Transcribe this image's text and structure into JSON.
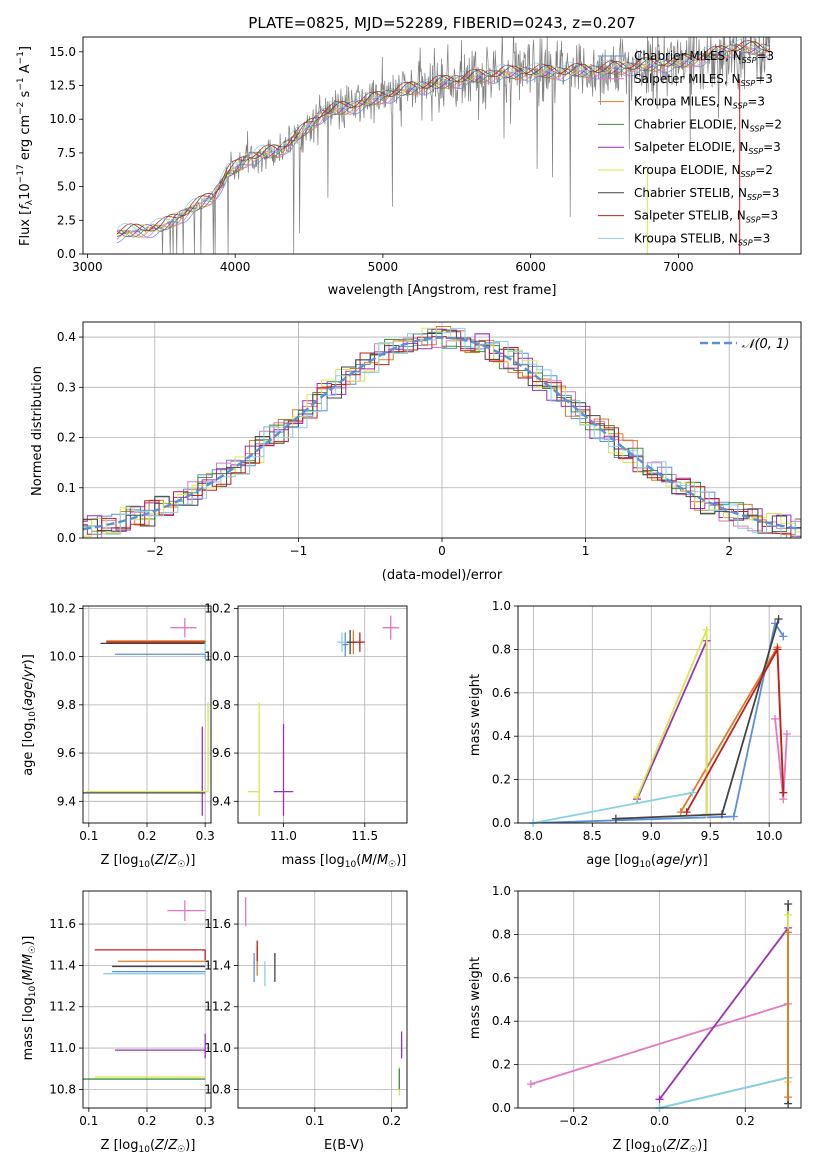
{
  "colors": {
    "Chabrier MILES": "#5b8fd9",
    "Salpeter MILES": "#e377c2",
    "Kroupa MILES": "#e07b20",
    "Chabrier ELODIE": "#3e8f3e",
    "Salpeter ELODIE": "#9b2fbf",
    "Kroupa ELODIE": "#d9e84a",
    "Chabrier STELIB": "#444444",
    "Salpeter STELIB": "#c0201f",
    "Kroupa STELIB": "#86d1e8",
    "data": "#7f7f7f",
    "gaussian": "#5b8fd9",
    "grid": "#b0b0b0"
  },
  "chart_data": [
    {
      "id": "spectrum",
      "type": "line",
      "title": "PLATE=0825, MJD=52289, FIBERID=0243, z=0.207",
      "xlabel": "wavelength [Angstrom, rest frame]",
      "ylabel": "Flux [f_λ 10^-17 erg cm^-2 s^-1 A^-1]",
      "xlim": [
        2970,
        7830
      ],
      "ylim": [
        0,
        16.1
      ],
      "xticks": [
        "3000",
        "4000",
        "5000",
        "6000",
        "7000"
      ],
      "yticks": [
        "0.0",
        "2.5",
        "5.0",
        "7.5",
        "10.0",
        "12.5",
        "15.0"
      ],
      "grid": false,
      "legend_position": "upper right",
      "legend": [
        {
          "name": "Chabrier MILES",
          "nssp": "3"
        },
        {
          "name": "Salpeter MILES",
          "nssp": "3"
        },
        {
          "name": "Kroupa MILES",
          "nssp": "3"
        },
        {
          "name": "Chabrier ELODIE",
          "nssp": "2"
        },
        {
          "name": "Salpeter ELODIE",
          "nssp": "3"
        },
        {
          "name": "Kroupa ELODIE",
          "nssp": "2"
        },
        {
          "name": "Chabrier STELIB",
          "nssp": "3"
        },
        {
          "name": "Salpeter STELIB",
          "nssp": "3"
        },
        {
          "name": "Kroupa STELIB",
          "nssp": "3"
        }
      ],
      "continuum_points": [
        [
          3200,
          1.5
        ],
        [
          3500,
          2.0
        ],
        [
          3700,
          3.3
        ],
        [
          3850,
          4.3
        ],
        [
          3950,
          6.0
        ],
        [
          4100,
          7.2
        ],
        [
          4300,
          7.7
        ],
        [
          4450,
          9.0
        ],
        [
          4600,
          10.5
        ],
        [
          4800,
          11.0
        ],
        [
          5000,
          11.7
        ],
        [
          5200,
          12.3
        ],
        [
          5400,
          12.7
        ],
        [
          5600,
          13.1
        ],
        [
          5800,
          13.4
        ],
        [
          6000,
          13.5
        ],
        [
          6200,
          13.5
        ],
        [
          6400,
          13.6
        ],
        [
          6600,
          13.8
        ],
        [
          6800,
          14.0
        ],
        [
          7000,
          14.2
        ],
        [
          7200,
          14.7
        ],
        [
          7400,
          15.3
        ],
        [
          7600,
          15.2
        ]
      ]
    },
    {
      "id": "residuals",
      "type": "histogram",
      "xlabel": "(data-model)/error",
      "ylabel": "Normed distribution",
      "xlim": [
        -2.5,
        2.5
      ],
      "ylim": [
        0,
        0.43
      ],
      "xticks": [
        "−2",
        "−1",
        "0",
        "1",
        "2"
      ],
      "yticks": [
        "0.0",
        "0.1",
        "0.2",
        "0.3",
        "0.4"
      ],
      "grid": true,
      "legend_position": "upper right",
      "legend_label": "𝒩(0, 1)",
      "bin_width": 0.1
    },
    {
      "id": "age-vs-Z",
      "type": "scatter",
      "xlabel": "Z [log10(Z/Z☉)]",
      "ylabel": "age [log10(age/yr)]",
      "xlim": [
        0.09,
        0.31
      ],
      "ylim": [
        9.31,
        10.21
      ],
      "xticks": [
        "0.1",
        "0.2",
        "0.3"
      ],
      "yticks": [
        "9.4",
        "9.6",
        "9.8",
        "10.0",
        "10.2"
      ],
      "grid": true,
      "points": [
        {
          "series": "Chabrier MILES",
          "x": 0.3,
          "y": 10.01,
          "x_err": [
            0.155,
            0.0
          ],
          "y_err": [
            0.02,
            0.0
          ]
        },
        {
          "series": "Salpeter MILES",
          "x": 0.265,
          "y": 10.12,
          "x_err": [
            0.025,
            0.02
          ],
          "y_err": [
            0.04,
            0.04
          ]
        },
        {
          "series": "Kroupa MILES",
          "x": 0.3,
          "y": 10.065,
          "x_err": [
            0.17,
            0.0
          ],
          "y_err": [
            0.01,
            0.0
          ]
        },
        {
          "series": "Salpeter ELODIE",
          "x": 0.295,
          "y": 9.44,
          "x_err": [
            0.0,
            0.0
          ],
          "y_err": [
            0.1,
            0.27
          ]
        },
        {
          "series": "Kroupa ELODIE",
          "x": 0.305,
          "y": 9.44,
          "x_err": [
            0.21,
            0.0
          ],
          "y_err": [
            0.0,
            0.37
          ]
        },
        {
          "series": "Chabrier STELIB",
          "x": 0.3,
          "y": 10.055,
          "x_err": [
            0.18,
            0.0
          ],
          "y_err": [
            0.01,
            0.0
          ]
        },
        {
          "series": "Chabrier STELIB",
          "x": 0.3,
          "y": 9.435,
          "x_err": [
            0.21,
            0.0
          ],
          "y_err": [
            0.0,
            0.0
          ]
        },
        {
          "series": "Salpeter STELIB",
          "x": 0.3,
          "y": 10.06,
          "x_err": [
            0.17,
            0.0
          ],
          "y_err": [
            0.0,
            0.0
          ]
        },
        {
          "series": "Kroupa STELIB",
          "x": 0.3,
          "y": 10.06,
          "x_err": [
            0.0,
            0.0
          ],
          "y_err": [
            0.05,
            0.0
          ]
        }
      ]
    },
    {
      "id": "age-vs-mass",
      "type": "scatter",
      "xlabel": "mass [log10(M/M☉)]",
      "ylabel": "",
      "xlim": [
        10.72,
        11.76
      ],
      "ylim": [
        9.31,
        10.21
      ],
      "xticks": [
        "11.0",
        "11.5"
      ],
      "yticks": [
        "9.4",
        "9.6",
        "9.8",
        "10.0",
        "10.2"
      ],
      "grid": true,
      "points": [
        {
          "series": "Chabrier MILES",
          "x": 11.38,
          "y": 10.05,
          "x_err": [
            0.02,
            0.02
          ],
          "y_err": [
            0.05,
            0.05
          ]
        },
        {
          "series": "Salpeter MILES",
          "x": 11.66,
          "y": 10.12,
          "x_err": [
            0.05,
            0.05
          ],
          "y_err": [
            0.05,
            0.05
          ]
        },
        {
          "series": "Kroupa MILES",
          "x": 11.43,
          "y": 10.06,
          "x_err": [
            0.05,
            0.05
          ],
          "y_err": [
            0.05,
            0.05
          ]
        },
        {
          "series": "Chabrier ELODIE",
          "x": 10.86,
          "y": 9.44,
          "x_err": [
            0.0,
            0.0
          ],
          "y_err": [
            0.0,
            0.0
          ]
        },
        {
          "series": "Salpeter ELODIE",
          "x": 11.0,
          "y": 9.44,
          "x_err": [
            0.06,
            0.06
          ],
          "y_err": [
            0.1,
            0.28
          ]
        },
        {
          "series": "Kroupa ELODIE",
          "x": 10.85,
          "y": 9.44,
          "x_err": [
            0.07,
            0.0
          ],
          "y_err": [
            0.1,
            0.37
          ]
        },
        {
          "series": "Chabrier STELIB",
          "x": 11.41,
          "y": 10.06,
          "x_err": [
            0.03,
            0.03
          ],
          "y_err": [
            0.05,
            0.05
          ]
        },
        {
          "series": "Salpeter STELIB",
          "x": 11.47,
          "y": 10.06,
          "x_err": [
            0.05,
            0.03
          ],
          "y_err": [
            0.04,
            0.04
          ]
        },
        {
          "series": "Kroupa STELIB",
          "x": 11.36,
          "y": 10.06,
          "x_err": [
            0.03,
            0.03
          ],
          "y_err": [
            0.04,
            0.04
          ]
        }
      ]
    },
    {
      "id": "weight-vs-age",
      "type": "line",
      "xlabel": "age [log10(age/yr)]",
      "ylabel": "mass weight",
      "xlim": [
        7.87,
        10.27
      ],
      "ylim": [
        0,
        1.0
      ],
      "xticks": [
        "8.0",
        "8.5",
        "9.0",
        "9.5",
        "10.0"
      ],
      "yticks": [
        "0.0",
        "0.2",
        "0.4",
        "0.6",
        "0.8",
        "1.0"
      ],
      "grid": true,
      "series": [
        {
          "name": "Chabrier MILES",
          "points": [
            [
              8.0,
              0.0
            ],
            [
              9.7,
              0.03
            ],
            [
              10.05,
              0.92
            ],
            [
              10.12,
              0.86
            ]
          ]
        },
        {
          "name": "Salpeter MILES",
          "points": [
            [
              10.05,
              0.48
            ],
            [
              10.12,
              0.11
            ],
            [
              10.15,
              0.41
            ]
          ]
        },
        {
          "name": "Kroupa MILES",
          "points": [
            [
              9.25,
              0.05
            ],
            [
              10.07,
              0.81
            ],
            [
              10.12,
              0.14
            ]
          ]
        },
        {
          "name": "Salpeter ELODIE",
          "points": [
            [
              8.88,
              0.11
            ],
            [
              9.47,
              0.84
            ],
            [
              9.47,
              0.04
            ]
          ]
        },
        {
          "name": "Kroupa ELODIE",
          "points": [
            [
              8.88,
              0.12
            ],
            [
              9.47,
              0.89
            ],
            [
              9.47,
              0.04
            ]
          ]
        },
        {
          "name": "Chabrier STELIB",
          "points": [
            [
              8.7,
              0.02
            ],
            [
              9.6,
              0.04
            ],
            [
              10.08,
              0.94
            ]
          ]
        },
        {
          "name": "Salpeter STELIB",
          "points": [
            [
              9.3,
              0.05
            ],
            [
              10.07,
              0.8
            ],
            [
              10.12,
              0.14
            ]
          ]
        },
        {
          "name": "Kroupa STELIB",
          "points": [
            [
              8.0,
              0.0
            ],
            [
              9.35,
              0.14
            ]
          ]
        }
      ]
    },
    {
      "id": "mass-vs-Z",
      "type": "scatter",
      "xlabel": "Z [log10(Z/Z☉)]",
      "ylabel": "mass [log10(M/M☉)]",
      "xlim": [
        0.09,
        0.31
      ],
      "ylim": [
        10.71,
        11.76
      ],
      "xticks": [
        "0.1",
        "0.2",
        "0.3"
      ],
      "yticks": [
        "10.8",
        "11.0",
        "11.2",
        "11.4",
        "11.6"
      ],
      "grid": true,
      "points": [
        {
          "series": "Salpeter MILES",
          "x": 0.265,
          "y": 11.665,
          "x_err": [
            0.03,
            0.035
          ],
          "y_err": [
            0.05,
            0.05
          ]
        },
        {
          "series": "Kroupa MILES",
          "x": 0.3,
          "y": 11.42,
          "x_err": [
            0.15,
            0.0
          ],
          "y_err": [
            0.0,
            0.0
          ]
        },
        {
          "series": "Chabrier MILES",
          "x": 0.3,
          "y": 11.37,
          "x_err": [
            0.16,
            0.0
          ],
          "y_err": [
            0.0,
            0.0
          ]
        },
        {
          "series": "Kroupa STELIB",
          "x": 0.3,
          "y": 11.36,
          "x_err": [
            0.175,
            0.0
          ],
          "y_err": [
            0.0,
            0.0
          ]
        },
        {
          "series": "Chabrier STELIB",
          "x": 0.3,
          "y": 11.395,
          "x_err": [
            0.16,
            0.0
          ],
          "y_err": [
            0.0,
            0.0
          ]
        },
        {
          "series": "Salpeter STELIB",
          "x": 0.3,
          "y": 11.475,
          "x_err": [
            0.19,
            0.0
          ],
          "y_err": [
            0.05,
            0.0
          ]
        },
        {
          "series": "Salpeter ELODIE",
          "x": 0.3,
          "y": 10.99,
          "x_err": [
            0.155,
            0.0
          ],
          "y_err": [
            0.04,
            0.08
          ]
        },
        {
          "series": "Kroupa ELODIE",
          "x": 0.3,
          "y": 10.86,
          "x_err": [
            0.19,
            0.0
          ],
          "y_err": [
            0.0,
            0.0
          ]
        },
        {
          "series": "Chabrier ELODIE",
          "x": 0.3,
          "y": 10.85,
          "x_err": [
            0.21,
            0.0
          ],
          "y_err": [
            0.0,
            0.0
          ]
        }
      ]
    },
    {
      "id": "mass-vs-EBV",
      "type": "scatter",
      "xlabel": "E(B-V)",
      "ylabel": "",
      "xlim": [
        0.0,
        0.22
      ],
      "ylim": [
        10.71,
        11.76
      ],
      "xticks": [
        "0.1",
        "0.2"
      ],
      "yticks": [
        "10.8",
        "11.0",
        "11.2",
        "11.4",
        "11.6"
      ],
      "grid": true,
      "points": [
        {
          "series": "Salpeter MILES",
          "x": 0.01,
          "y": 11.66,
          "x_err": [
            0.0,
            0.0
          ],
          "y_err": [
            0.07,
            0.07
          ]
        },
        {
          "series": "Chabrier MILES",
          "x": 0.021,
          "y": 11.39,
          "x_err": [
            0.0,
            0.0
          ],
          "y_err": [
            0.07,
            0.07
          ]
        },
        {
          "series": "Kroupa MILES",
          "x": 0.025,
          "y": 11.42,
          "x_err": [
            0.0,
            0.0
          ],
          "y_err": [
            0.07,
            0.07
          ]
        },
        {
          "series": "Salpeter STELIB",
          "x": 0.025,
          "y": 11.47,
          "x_err": [
            0.0,
            0.0
          ],
          "y_err": [
            0.05,
            0.05
          ]
        },
        {
          "series": "Kroupa STELIB",
          "x": 0.035,
          "y": 11.36,
          "x_err": [
            0.0,
            0.0
          ],
          "y_err": [
            0.06,
            0.06
          ]
        },
        {
          "series": "Chabrier STELIB",
          "x": 0.048,
          "y": 11.39,
          "x_err": [
            0.0,
            0.0
          ],
          "y_err": [
            0.07,
            0.07
          ]
        },
        {
          "series": "Salpeter ELODIE",
          "x": 0.213,
          "y": 10.99,
          "x_err": [
            0.0,
            0.0
          ],
          "y_err": [
            0.04,
            0.09
          ]
        },
        {
          "series": "Kroupa ELODIE",
          "x": 0.21,
          "y": 10.86,
          "x_err": [
            0.0,
            0.0
          ],
          "y_err": [
            0.09,
            0.05
          ]
        },
        {
          "series": "Chabrier ELODIE",
          "x": 0.21,
          "y": 10.85,
          "x_err": [
            0.0,
            0.0
          ],
          "y_err": [
            0.05,
            0.05
          ]
        }
      ]
    },
    {
      "id": "weight-vs-Z",
      "type": "line",
      "xlabel": "Z [log10(Z/Z☉)]",
      "ylabel": "mass weight",
      "xlim": [
        -0.33,
        0.33
      ],
      "ylim": [
        0,
        1.0
      ],
      "xticks": [
        "−0.2",
        "0.0",
        "0.2"
      ],
      "yticks": [
        "0.0",
        "0.2",
        "0.4",
        "0.6",
        "0.8",
        "1.0"
      ],
      "grid": true,
      "series": [
        {
          "name": "Salpeter MILES",
          "points": [
            [
              -0.3,
              0.11
            ],
            [
              0.3,
              0.48
            ]
          ]
        },
        {
          "name": "Salpeter ELODIE",
          "points": [
            [
              0.0,
              0.04
            ],
            [
              0.3,
              0.83
            ]
          ]
        },
        {
          "name": "Chabrier MILES",
          "points": [
            [
              0.0,
              0.0
            ],
            [
              0.3,
              0.14
            ]
          ]
        },
        {
          "name": "Kroupa STELIB",
          "points": [
            [
              0.0,
              0.0
            ],
            [
              0.3,
              0.14
            ]
          ]
        },
        {
          "name": "Chabrier STELIB",
          "points": [
            [
              0.3,
              0.02
            ],
            [
              0.3,
              0.94
            ]
          ]
        },
        {
          "name": "Kroupa ELODIE",
          "points": [
            [
              0.3,
              0.12
            ],
            [
              0.3,
              0.89
            ]
          ]
        },
        {
          "name": "Kroupa MILES",
          "points": [
            [
              0.3,
              0.05
            ],
            [
              0.3,
              0.81
            ]
          ]
        }
      ]
    }
  ]
}
